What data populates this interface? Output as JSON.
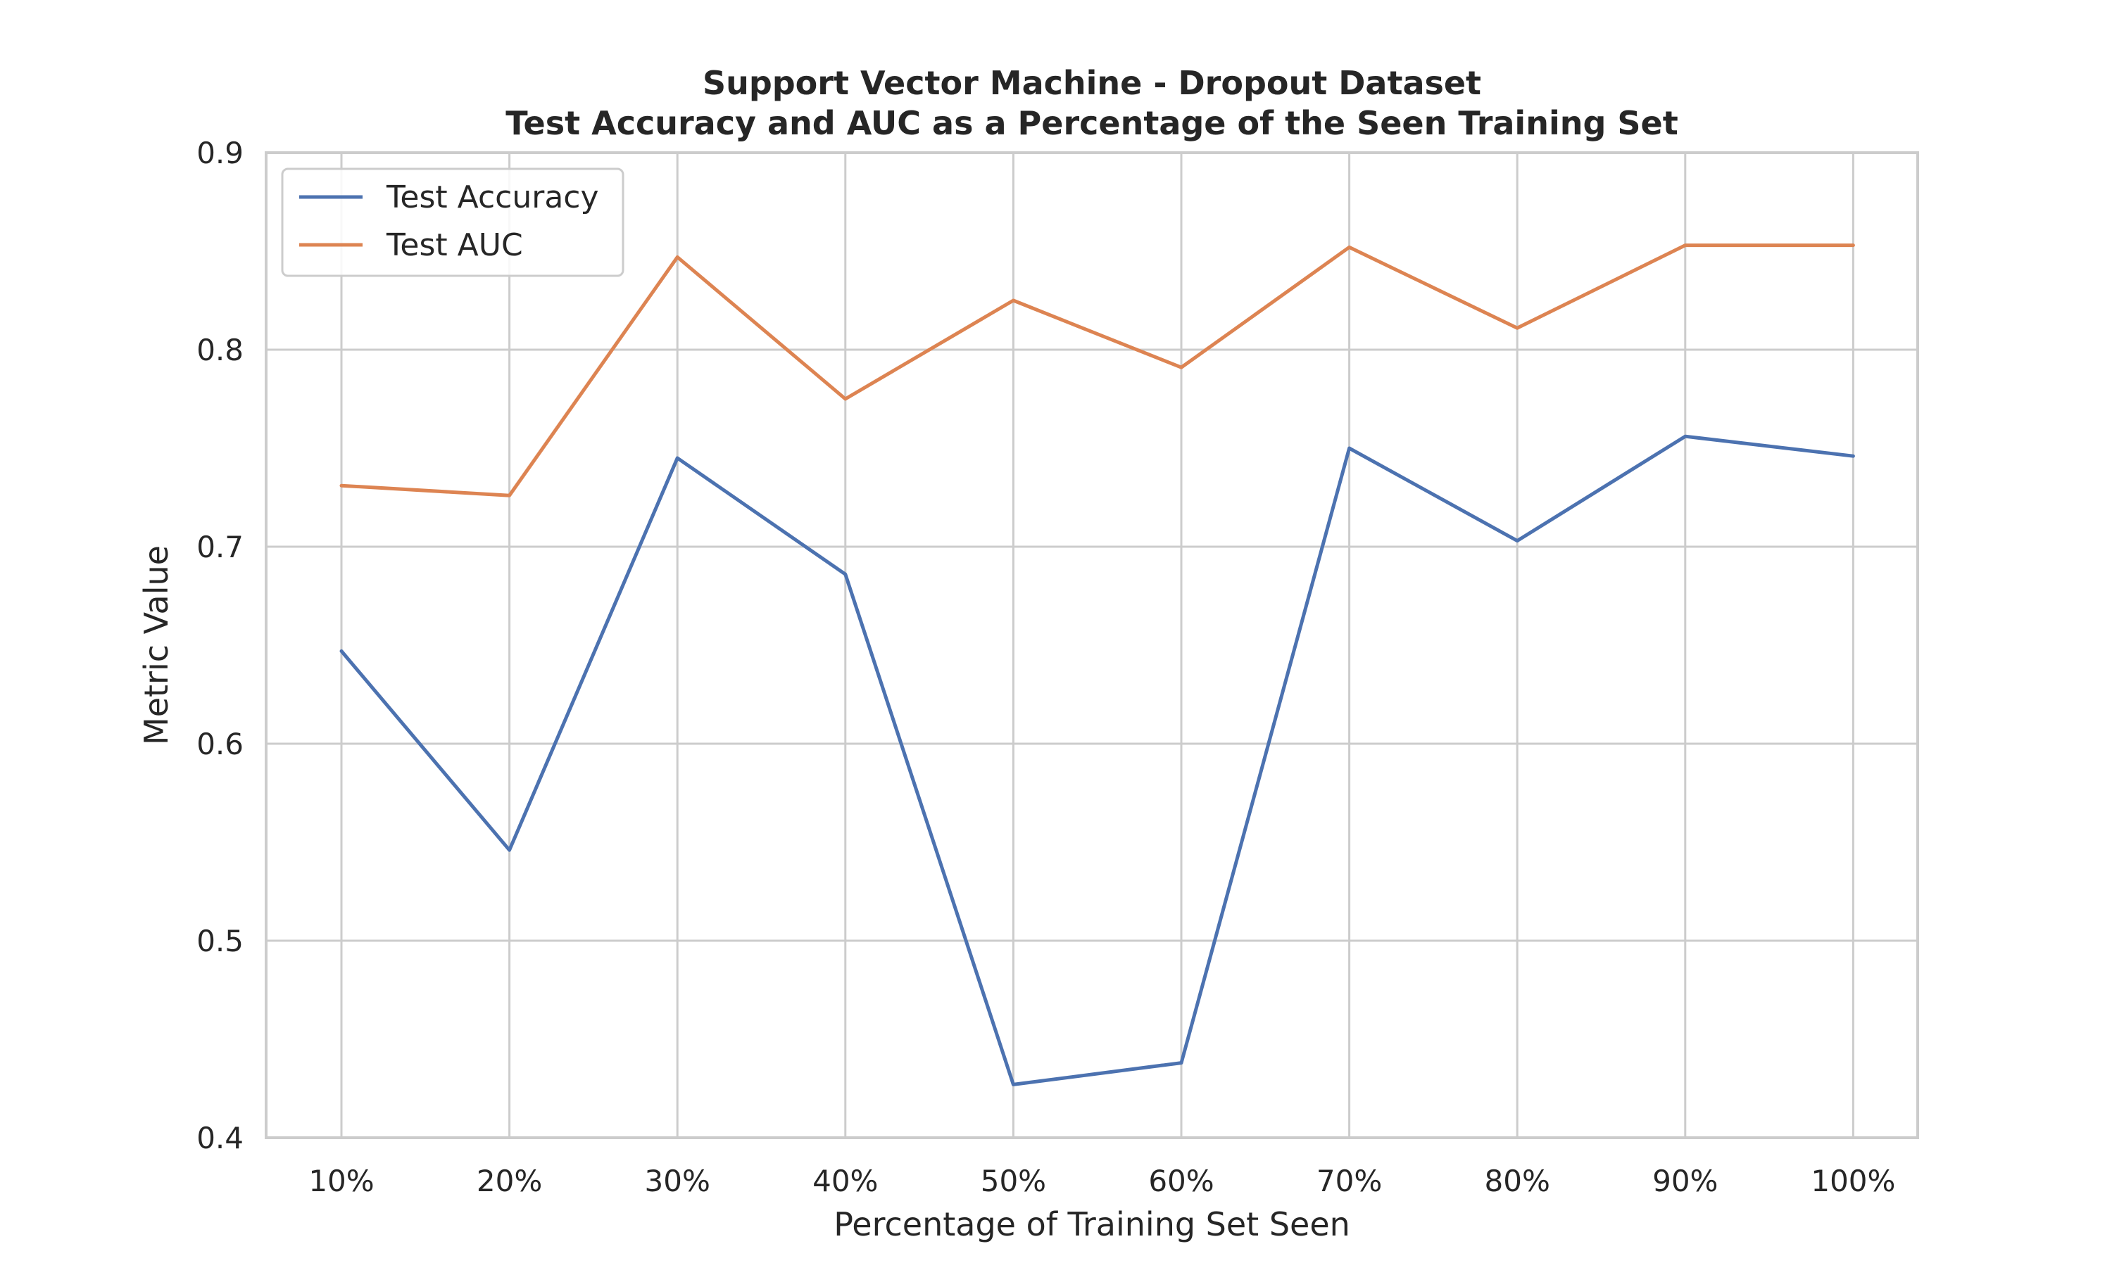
{
  "chart_data": {
    "type": "line",
    "title": "Support Vector Machine - Dropout Dataset",
    "subtitle": "Test Accuracy and AUC as a Percentage of the Seen Training Set",
    "xlabel": "Percentage of Training Set Seen",
    "ylabel": "Metric Value",
    "categories": [
      "10%",
      "20%",
      "30%",
      "40%",
      "50%",
      "60%",
      "70%",
      "80%",
      "90%",
      "100%"
    ],
    "ylim": [
      0.4,
      0.9
    ],
    "yticks": [
      "0.4",
      "0.5",
      "0.6",
      "0.7",
      "0.8",
      "0.9"
    ],
    "grid": true,
    "legend_position": "top-left",
    "series": [
      {
        "name": "Test Accuracy",
        "color": "#4c72b0",
        "values": [
          0.647,
          0.546,
          0.745,
          0.686,
          0.427,
          0.438,
          0.75,
          0.703,
          0.756,
          0.746
        ]
      },
      {
        "name": "Test AUC",
        "color": "#dd8452",
        "values": [
          0.731,
          0.726,
          0.847,
          0.775,
          0.825,
          0.791,
          0.852,
          0.811,
          0.853,
          0.853
        ]
      }
    ]
  }
}
